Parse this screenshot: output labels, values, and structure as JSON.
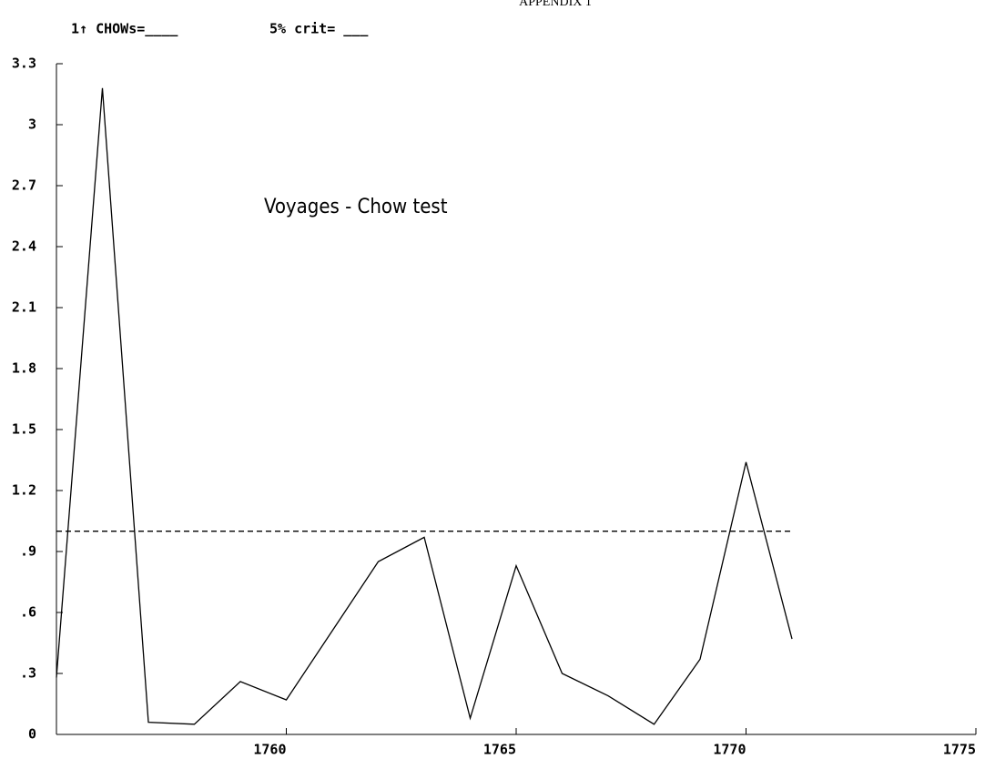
{
  "chart_data": {
    "type": "line",
    "appendix": "APPENDIX 1",
    "legend_text": "1↑ CHOWs=____",
    "crit_text": "5% crit= ___",
    "title": "Voyages - Chow test",
    "x": [
      1755,
      1756,
      1757,
      1758,
      1759,
      1760,
      1761,
      1762,
      1763,
      1764,
      1765,
      1766,
      1767,
      1768,
      1769,
      1770,
      1771
    ],
    "series": [
      {
        "name": "CHOWs",
        "color": "#000000",
        "values": [
          0.28,
          3.18,
          0.06,
          0.05,
          0.26,
          0.17,
          0.51,
          0.85,
          0.97,
          0.08,
          0.83,
          0.3,
          0.19,
          0.05,
          0.37,
          1.34,
          0.47
        ]
      },
      {
        "name": "5% crit",
        "color": "#000000",
        "dashed": true,
        "x": [
          1755,
          1771
        ],
        "values": [
          1.0,
          1.0
        ]
      }
    ],
    "xlim": [
      1755,
      1775
    ],
    "xticks": [
      1760,
      1765,
      1770,
      1775
    ],
    "ylim": [
      0,
      3.3
    ],
    "yticks": [
      0,
      {
        "value": 0.3,
        "label": ".3"
      },
      {
        "value": 0.6,
        "label": ".6"
      },
      {
        "value": 0.9,
        "label": ".9"
      },
      1.2,
      1.5,
      1.8,
      2.1,
      2.4,
      2.7,
      3,
      3.3
    ]
  }
}
